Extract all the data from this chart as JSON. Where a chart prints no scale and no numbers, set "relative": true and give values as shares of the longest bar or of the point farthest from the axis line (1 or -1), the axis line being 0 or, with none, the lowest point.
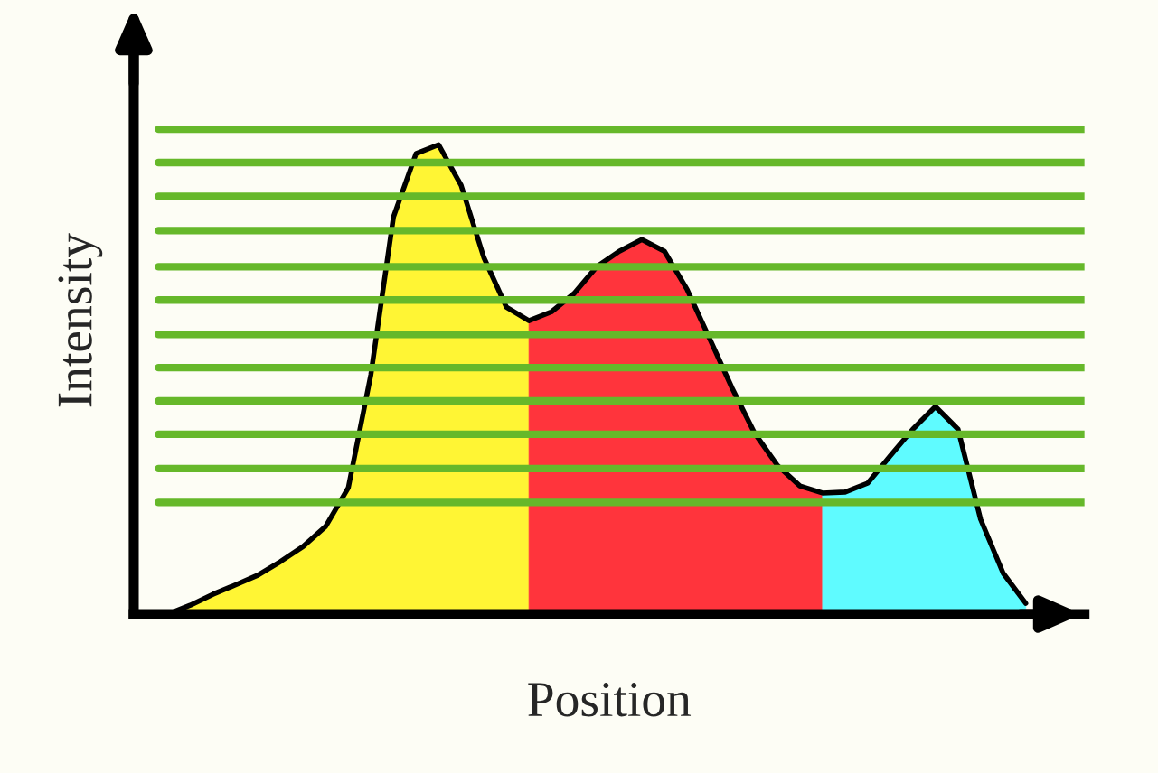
{
  "chart_data": {
    "type": "area",
    "relative": true,
    "xlabel": "Position",
    "ylabel": "Intensity",
    "legend": false,
    "categories": [
      null,
      null,
      null,
      null,
      null,
      null,
      null,
      null,
      null,
      null,
      null,
      null,
      null,
      null,
      null,
      null,
      null,
      null,
      null,
      null,
      null,
      null,
      null,
      null,
      null,
      null,
      null,
      null,
      null,
      null,
      null,
      null,
      null,
      null,
      null,
      null,
      null,
      null,
      null
    ],
    "series": [
      {
        "color": "#fff534",
        "values": [
          0,
          0.019,
          0.042,
          0.062,
          0.083,
          0.112,
          0.144,
          0.187,
          0.269,
          0.51,
          0.846,
          0.981,
          1.0,
          0.913,
          0.76,
          0.654,
          0.625,
          null,
          null,
          null,
          null,
          null,
          null,
          null,
          null,
          null,
          null,
          null,
          null,
          null,
          null,
          null,
          null,
          null,
          null,
          null,
          null,
          null,
          null
        ]
      },
      {
        "color": "#ff343c",
        "values": [
          null,
          null,
          null,
          null,
          null,
          null,
          null,
          null,
          null,
          null,
          null,
          null,
          null,
          null,
          null,
          null,
          0.625,
          0.644,
          0.683,
          0.74,
          0.773,
          0.798,
          0.773,
          0.692,
          0.587,
          0.481,
          0.385,
          0.317,
          0.273,
          0.258,
          null,
          null,
          null,
          null,
          null,
          null,
          null,
          null,
          null
        ]
      },
      {
        "color": "#5ffbff",
        "values": [
          null,
          null,
          null,
          null,
          null,
          null,
          null,
          null,
          null,
          null,
          null,
          null,
          null,
          null,
          null,
          null,
          null,
          null,
          null,
          null,
          null,
          null,
          null,
          null,
          null,
          null,
          null,
          null,
          null,
          0.258,
          0.26,
          0.279,
          0.337,
          0.394,
          0.442,
          0.394,
          0.202,
          0.087,
          0.023
        ]
      },
      {
        "type": "line",
        "color": "#000000",
        "values": [
          0,
          0.019,
          0.042,
          0.062,
          0.083,
          0.112,
          0.144,
          0.187,
          0.269,
          0.51,
          0.846,
          0.981,
          1.0,
          0.913,
          0.76,
          0.654,
          0.625,
          0.644,
          0.683,
          0.74,
          0.773,
          0.798,
          0.773,
          0.692,
          0.587,
          0.481,
          0.385,
          0.317,
          0.273,
          0.258,
          0.26,
          0.279,
          0.337,
          0.394,
          0.442,
          0.394,
          0.202,
          0.087,
          0.023
        ]
      }
    ],
    "ref_lines": [
      {
        "axis": "y",
        "value": 1.033,
        "color": "#66b82a"
      },
      {
        "axis": "y",
        "value": 0.962,
        "color": "#66b82a"
      },
      {
        "axis": "y",
        "value": 0.89,
        "color": "#66b82a"
      },
      {
        "axis": "y",
        "value": 0.817,
        "color": "#66b82a"
      },
      {
        "axis": "y",
        "value": 0.74,
        "color": "#66b82a"
      },
      {
        "axis": "y",
        "value": 0.669,
        "color": "#66b82a"
      },
      {
        "axis": "y",
        "value": 0.596,
        "color": "#66b82a"
      },
      {
        "axis": "y",
        "value": 0.525,
        "color": "#66b82a"
      },
      {
        "axis": "y",
        "value": 0.454,
        "color": "#66b82a"
      },
      {
        "axis": "y",
        "value": 0.383,
        "color": "#66b82a"
      },
      {
        "axis": "y",
        "value": 0.31,
        "color": "#66b82a"
      },
      {
        "axis": "y",
        "value": 0.238,
        "color": "#66b82a"
      }
    ]
  }
}
